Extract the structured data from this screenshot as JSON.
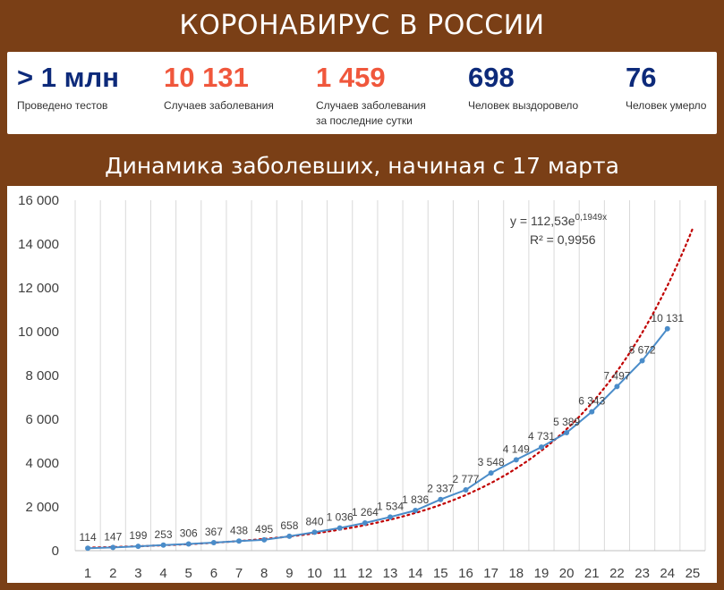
{
  "header": {
    "title": "КОРОНАВИРУС В РОССИИ"
  },
  "stats": [
    {
      "value": "> 1 млн",
      "label": "Проведено тестов",
      "color": "#0d2a7a"
    },
    {
      "value": "10 131",
      "label": "Случаев заболевания",
      "color": "#f0573c"
    },
    {
      "value": "1 459",
      "label": "Случаев заболевания",
      "label2": "за последние сутки",
      "color": "#f0573c"
    },
    {
      "value": "698",
      "label": "Человек выздоровело",
      "color": "#0d2a7a"
    },
    {
      "value": "76",
      "label": "Человек умерло",
      "color": "#0d2a7a"
    }
  ],
  "chart_title": "Динамика заболевших, начиная с 17 марта",
  "chart_data": {
    "type": "line",
    "x": [
      1,
      2,
      3,
      4,
      5,
      6,
      7,
      8,
      9,
      10,
      11,
      12,
      13,
      14,
      15,
      16,
      17,
      18,
      19,
      20,
      21,
      22,
      23,
      24
    ],
    "series": [
      {
        "values": [
          114,
          147,
          199,
          253,
          306,
          367,
          438,
          495,
          658,
          840,
          1036,
          1264,
          1534,
          1836,
          2337,
          2777,
          3548,
          4149,
          4731,
          5389,
          6343,
          7497,
          8672,
          10131
        ],
        "data_labels": [
          "114",
          "147",
          "199",
          "253",
          "306",
          "367",
          "438",
          "495",
          "658",
          "840",
          "1 036",
          "1 264",
          "1 534",
          "1 836",
          "2 337",
          "2 777",
          "3 548",
          "4 149",
          "4 731",
          "5 389",
          "6 343",
          "7 497",
          "8 672",
          "10 131"
        ],
        "color": "#4a8cc9"
      }
    ],
    "trendline": {
      "type": "exponential",
      "a": 112.53,
      "b": 0.1949,
      "color": "#c00000",
      "equation": "y = 112,53e",
      "exponent": "0,1949x",
      "r2": "R² = 0,9956"
    },
    "xlim": [
      1,
      25
    ],
    "ylim": [
      0,
      16000
    ],
    "x_ticks": [
      "1",
      "2",
      "3",
      "4",
      "5",
      "6",
      "7",
      "8",
      "9",
      "10",
      "11",
      "12",
      "13",
      "14",
      "15",
      "16",
      "17",
      "18",
      "19",
      "20",
      "21",
      "22",
      "23",
      "24",
      "25"
    ],
    "y_ticks": [
      "0",
      "2 000",
      "4 000",
      "6 000",
      "8 000",
      "10 000",
      "12 000",
      "14 000",
      "16 000"
    ],
    "grid": "vertical"
  }
}
